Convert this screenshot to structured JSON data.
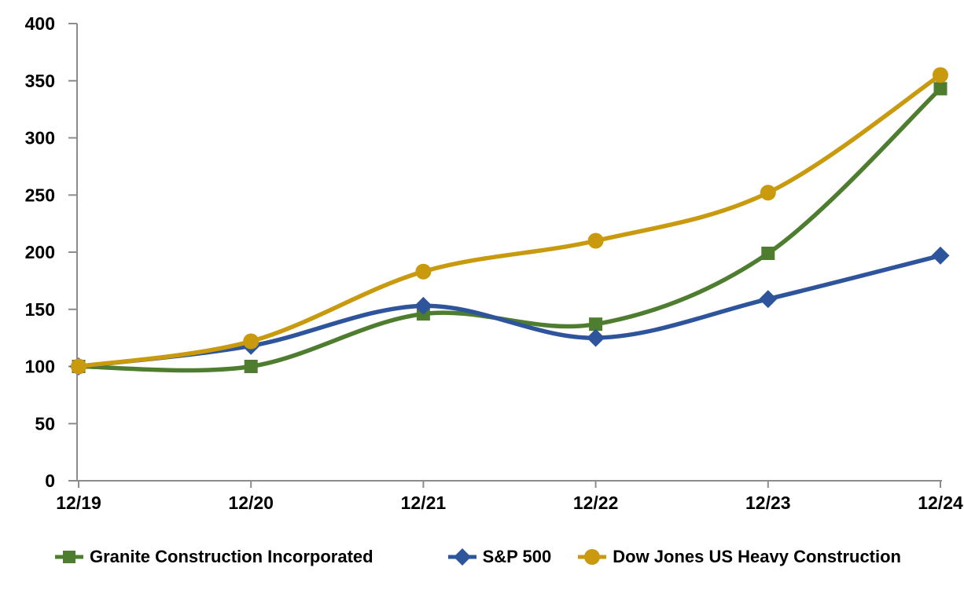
{
  "chart_data": {
    "type": "line",
    "title": "",
    "xlabel": "",
    "ylabel": "",
    "x_tick_labels": [
      "12/19",
      "12/20",
      "12/21",
      "12/22",
      "12/23",
      "12/24"
    ],
    "y_ticks": [
      0,
      50,
      100,
      150,
      200,
      250,
      300,
      350,
      400
    ],
    "ylim": [
      0,
      400
    ],
    "grid": false,
    "smooth": true,
    "legend_position": "bottom",
    "series": [
      {
        "name": "Granite Construction Incorporated",
        "marker": "square",
        "color": "#4E7D2F",
        "values": [
          100,
          100,
          146,
          137,
          199,
          343
        ]
      },
      {
        "name": "S&P 500",
        "marker": "diamond",
        "color": "#2E559B",
        "values": [
          100,
          118,
          153,
          125,
          159,
          197
        ]
      },
      {
        "name": "Dow Jones US Heavy Construction",
        "marker": "circle",
        "color": "#C9990E",
        "values": [
          100,
          122,
          183,
          210,
          252,
          355
        ]
      }
    ]
  },
  "colors": {
    "axis": "#8C8C8C",
    "text": "#000000",
    "background": "#FFFFFF"
  }
}
